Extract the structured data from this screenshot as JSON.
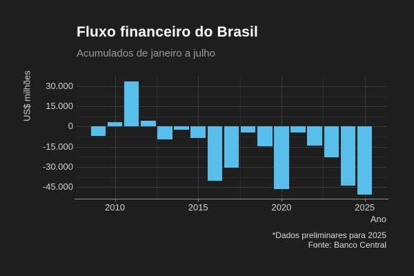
{
  "header": {
    "title": "Fluxo financeiro do Brasil",
    "subtitle": "Acumulados de janeiro a julho"
  },
  "footer": {
    "note": "*Dados preliminares para 2025",
    "source": "Fonte: Banco Central"
  },
  "chart_data": {
    "type": "bar",
    "title": "Fluxo financeiro do Brasil",
    "subtitle": "Acumulados de janeiro a julho",
    "xlabel": "Ano",
    "ylabel": "US$ milhões",
    "categories": [
      2009,
      2010,
      2011,
      2012,
      2013,
      2014,
      2015,
      2016,
      2017,
      2018,
      2019,
      2020,
      2021,
      2022,
      2023,
      2024,
      2025
    ],
    "values": [
      -6800,
      3400,
      33700,
      4300,
      -9800,
      -2500,
      -8300,
      -40100,
      -30800,
      -4500,
      -14700,
      -46400,
      -4500,
      -14400,
      -23000,
      -44000,
      -50300
    ],
    "x_major_ticks": [
      2010,
      2015,
      2020,
      2025
    ],
    "x_major_tick_labels": [
      "2010",
      "2015",
      "2020",
      "2025"
    ],
    "x_minor_ticks": [
      2012.5,
      2017.5,
      2022.5
    ],
    "y_major_ticks": [
      30000,
      15000,
      0,
      -15000,
      -30000,
      -45000
    ],
    "y_major_tick_labels": [
      "30.000",
      "15.000",
      "0",
      "-15.000",
      "-30.000",
      "-45.000"
    ],
    "y_minor_ticks": [
      22500,
      7500,
      -7500,
      -22500,
      -37500
    ],
    "ylim": [
      -53600,
      37600
    ],
    "xlim": [
      2007.7,
      2026.3
    ],
    "grid": "major+minor, horizontal and vertical",
    "legend": "none",
    "bar_color": "#58bfec",
    "colors": {
      "background": "#1e1e1e",
      "grid_major": "#3a3a3a",
      "grid_minor": "#2b2b2b",
      "axis_line": "#8f8f8f",
      "title_text": "#ffffff",
      "subtitle_text": "#9b9b9b",
      "tick_text": "#d2d2d2",
      "caption_text": "#dcdcdc"
    }
  }
}
